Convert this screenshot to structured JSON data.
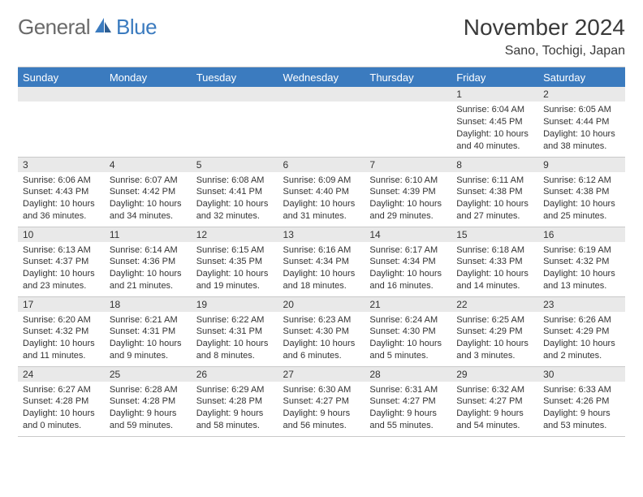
{
  "brand": {
    "part1": "General",
    "part2": "Blue",
    "logo_color": "#3b7bbf",
    "text_color": "#6a6a6a"
  },
  "title": "November 2024",
  "location": "Sano, Tochigi, Japan",
  "colors": {
    "header_bg": "#3b7bbf",
    "header_text": "#ffffff",
    "daynum_bg": "#e9e9e9",
    "border": "#c9c9c9",
    "body_text": "#333333"
  },
  "columns": [
    "Sunday",
    "Monday",
    "Tuesday",
    "Wednesday",
    "Thursday",
    "Friday",
    "Saturday"
  ],
  "weeks": [
    [
      null,
      null,
      null,
      null,
      null,
      {
        "n": "1",
        "sr": "6:04 AM",
        "ss": "4:45 PM",
        "dl": "10 hours and 40 minutes."
      },
      {
        "n": "2",
        "sr": "6:05 AM",
        "ss": "4:44 PM",
        "dl": "10 hours and 38 minutes."
      }
    ],
    [
      {
        "n": "3",
        "sr": "6:06 AM",
        "ss": "4:43 PM",
        "dl": "10 hours and 36 minutes."
      },
      {
        "n": "4",
        "sr": "6:07 AM",
        "ss": "4:42 PM",
        "dl": "10 hours and 34 minutes."
      },
      {
        "n": "5",
        "sr": "6:08 AM",
        "ss": "4:41 PM",
        "dl": "10 hours and 32 minutes."
      },
      {
        "n": "6",
        "sr": "6:09 AM",
        "ss": "4:40 PM",
        "dl": "10 hours and 31 minutes."
      },
      {
        "n": "7",
        "sr": "6:10 AM",
        "ss": "4:39 PM",
        "dl": "10 hours and 29 minutes."
      },
      {
        "n": "8",
        "sr": "6:11 AM",
        "ss": "4:38 PM",
        "dl": "10 hours and 27 minutes."
      },
      {
        "n": "9",
        "sr": "6:12 AM",
        "ss": "4:38 PM",
        "dl": "10 hours and 25 minutes."
      }
    ],
    [
      {
        "n": "10",
        "sr": "6:13 AM",
        "ss": "4:37 PM",
        "dl": "10 hours and 23 minutes."
      },
      {
        "n": "11",
        "sr": "6:14 AM",
        "ss": "4:36 PM",
        "dl": "10 hours and 21 minutes."
      },
      {
        "n": "12",
        "sr": "6:15 AM",
        "ss": "4:35 PM",
        "dl": "10 hours and 19 minutes."
      },
      {
        "n": "13",
        "sr": "6:16 AM",
        "ss": "4:34 PM",
        "dl": "10 hours and 18 minutes."
      },
      {
        "n": "14",
        "sr": "6:17 AM",
        "ss": "4:34 PM",
        "dl": "10 hours and 16 minutes."
      },
      {
        "n": "15",
        "sr": "6:18 AM",
        "ss": "4:33 PM",
        "dl": "10 hours and 14 minutes."
      },
      {
        "n": "16",
        "sr": "6:19 AM",
        "ss": "4:32 PM",
        "dl": "10 hours and 13 minutes."
      }
    ],
    [
      {
        "n": "17",
        "sr": "6:20 AM",
        "ss": "4:32 PM",
        "dl": "10 hours and 11 minutes."
      },
      {
        "n": "18",
        "sr": "6:21 AM",
        "ss": "4:31 PM",
        "dl": "10 hours and 9 minutes."
      },
      {
        "n": "19",
        "sr": "6:22 AM",
        "ss": "4:31 PM",
        "dl": "10 hours and 8 minutes."
      },
      {
        "n": "20",
        "sr": "6:23 AM",
        "ss": "4:30 PM",
        "dl": "10 hours and 6 minutes."
      },
      {
        "n": "21",
        "sr": "6:24 AM",
        "ss": "4:30 PM",
        "dl": "10 hours and 5 minutes."
      },
      {
        "n": "22",
        "sr": "6:25 AM",
        "ss": "4:29 PM",
        "dl": "10 hours and 3 minutes."
      },
      {
        "n": "23",
        "sr": "6:26 AM",
        "ss": "4:29 PM",
        "dl": "10 hours and 2 minutes."
      }
    ],
    [
      {
        "n": "24",
        "sr": "6:27 AM",
        "ss": "4:28 PM",
        "dl": "10 hours and 0 minutes."
      },
      {
        "n": "25",
        "sr": "6:28 AM",
        "ss": "4:28 PM",
        "dl": "9 hours and 59 minutes."
      },
      {
        "n": "26",
        "sr": "6:29 AM",
        "ss": "4:28 PM",
        "dl": "9 hours and 58 minutes."
      },
      {
        "n": "27",
        "sr": "6:30 AM",
        "ss": "4:27 PM",
        "dl": "9 hours and 56 minutes."
      },
      {
        "n": "28",
        "sr": "6:31 AM",
        "ss": "4:27 PM",
        "dl": "9 hours and 55 minutes."
      },
      {
        "n": "29",
        "sr": "6:32 AM",
        "ss": "4:27 PM",
        "dl": "9 hours and 54 minutes."
      },
      {
        "n": "30",
        "sr": "6:33 AM",
        "ss": "4:26 PM",
        "dl": "9 hours and 53 minutes."
      }
    ]
  ],
  "labels": {
    "sunrise": "Sunrise: ",
    "sunset": "Sunset: ",
    "daylight": "Daylight: "
  }
}
